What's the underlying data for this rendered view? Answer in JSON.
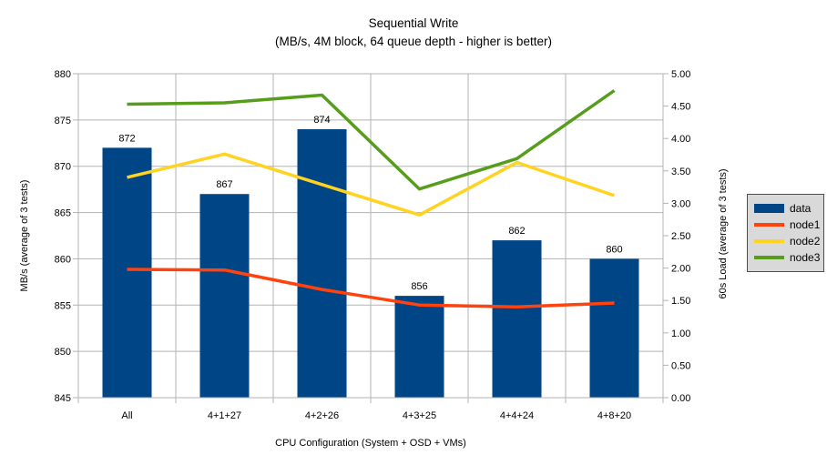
{
  "title": "Sequential Write",
  "subtitle": "(MB/s, 4M block, 64 queue depth - higher is better)",
  "chart_data": {
    "type": "bar+line",
    "title": "Sequential Write",
    "subtitle": "(MB/s, 4M block, 64 queue depth - higher is better)",
    "categories": [
      "All",
      "4+1+27",
      "4+2+26",
      "4+3+25",
      "4+4+24",
      "4+8+20"
    ],
    "bar_series": {
      "name": "data",
      "axis": "left",
      "color": "#004586",
      "values": [
        872,
        867,
        874,
        856,
        862,
        860
      ],
      "value_labels": [
        "872",
        "867",
        "874",
        "856",
        "862",
        "860"
      ]
    },
    "line_series": [
      {
        "name": "node1",
        "axis": "right",
        "color": "#FF420E",
        "values": [
          1.98,
          1.97,
          1.67,
          1.43,
          1.4,
          1.46
        ]
      },
      {
        "name": "node2",
        "axis": "right",
        "color": "#FFD320",
        "values": [
          3.4,
          3.76,
          3.29,
          2.82,
          3.63,
          3.12
        ]
      },
      {
        "name": "node3",
        "axis": "right",
        "color": "#579D1C",
        "values": [
          4.53,
          4.55,
          4.67,
          3.22,
          3.69,
          4.74
        ]
      }
    ],
    "xlabel": "CPU Configuration (System + OSD + VMs)",
    "ylabel_left": "MB/s (average of 3 tests)",
    "ylabel_right": "60s Load (average of 3 tests)",
    "left_axis": {
      "min": 845,
      "max": 880,
      "step": 5
    },
    "right_axis": {
      "min": 0,
      "max": 5,
      "step": 0.5
    },
    "grid": true,
    "legend_position": "right",
    "colors": {
      "gridline": "#b3b3b3",
      "axis": "#b3b3b3",
      "text": "#000000",
      "legend_bg": "#d9d9d9",
      "legend_border": "#4d4d4d",
      "background": "#ffffff"
    }
  }
}
